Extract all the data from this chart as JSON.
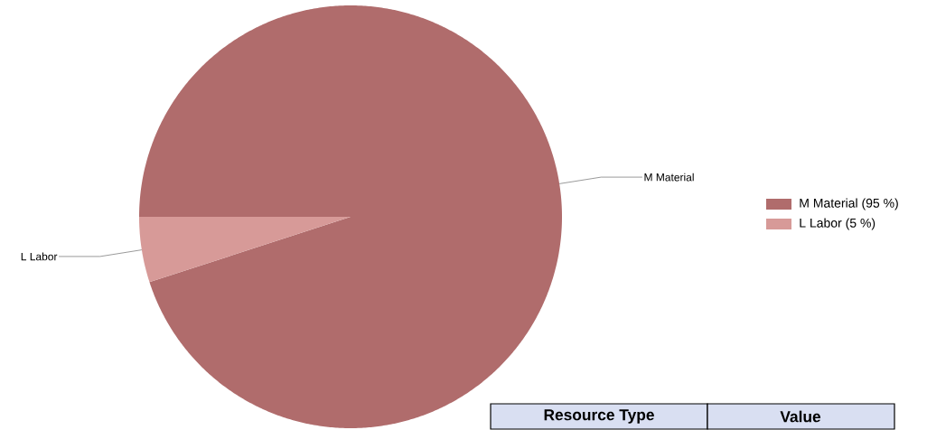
{
  "chart_data": {
    "type": "pie",
    "categories": [
      "M Material",
      "L Labor"
    ],
    "values": [
      95,
      5
    ],
    "colors": [
      "#b06c6c",
      "#d79a98"
    ],
    "value_labels": [
      "(95 %)",
      "(5 %)"
    ],
    "legend": "right",
    "annotations": [
      "Resource Type",
      "Value"
    ]
  }
}
